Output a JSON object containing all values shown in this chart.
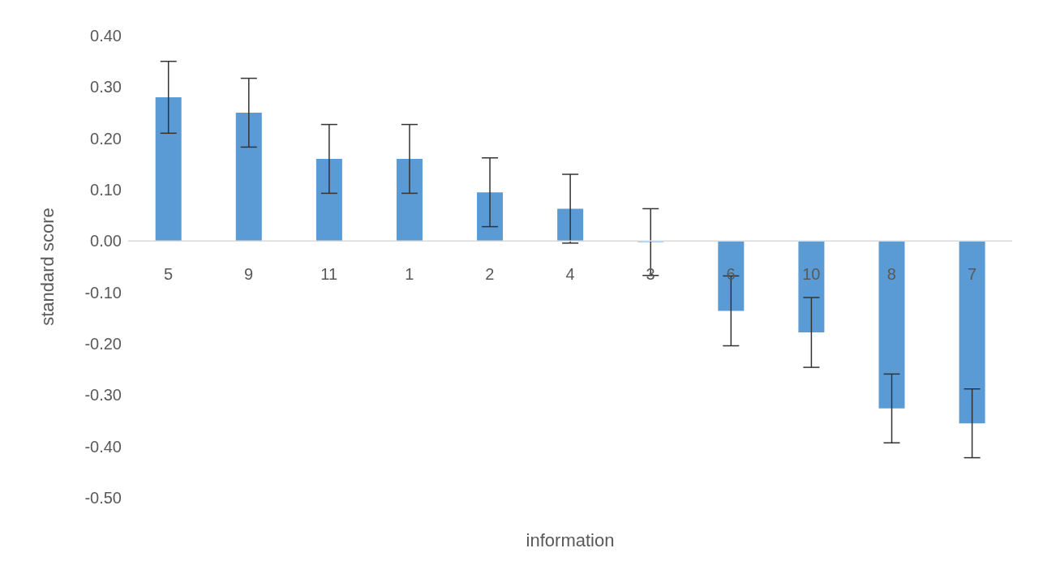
{
  "chart_data": {
    "type": "bar",
    "xlabel": "information",
    "ylabel": "standard score",
    "categories": [
      "5",
      "9",
      "11",
      "1",
      "2",
      "4",
      "3",
      "6",
      "10",
      "8",
      "7"
    ],
    "values": [
      0.28,
      0.25,
      0.16,
      0.16,
      0.095,
      0.063,
      -0.002,
      -0.136,
      -0.178,
      -0.326,
      -0.355
    ],
    "errors": [
      0.07,
      0.067,
      0.067,
      0.067,
      0.067,
      0.067,
      0.065,
      0.068,
      0.068,
      0.067,
      0.067
    ],
    "color": "#5b9bd5",
    "ylim": [
      -0.5,
      0.4
    ],
    "yticks": [
      {
        "value": -0.5,
        "label": "-0.50"
      },
      {
        "value": -0.4,
        "label": "-0.40"
      },
      {
        "value": -0.3,
        "label": "-0.30"
      },
      {
        "value": -0.2,
        "label": "-0.20"
      },
      {
        "value": -0.1,
        "label": "-0.10"
      },
      {
        "value": 0,
        "label": "0.00"
      },
      {
        "value": 0.1,
        "label": "0.10"
      },
      {
        "value": 0.2,
        "label": "0.20"
      },
      {
        "value": 0.3,
        "label": "0.30"
      },
      {
        "value": 0.4,
        "label": "0.40"
      }
    ],
    "grid": false,
    "legend": false
  }
}
